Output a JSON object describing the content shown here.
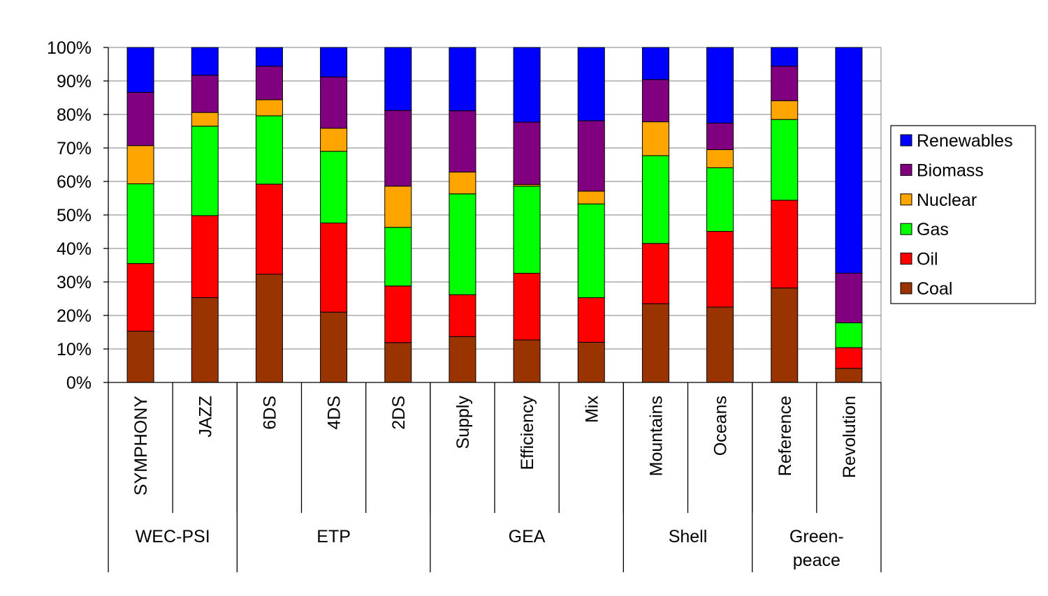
{
  "chart_data": {
    "type": "bar",
    "stacked": true,
    "percent": true,
    "title": "",
    "xlabel": "",
    "ylabel": "",
    "ylim": [
      0,
      100
    ],
    "yticks": [
      "0%",
      "10%",
      "20%",
      "30%",
      "40%",
      "50%",
      "60%",
      "70%",
      "80%",
      "90%",
      "100%"
    ],
    "grid": true,
    "legend_position": "right",
    "categories": [
      "SYMPHONY",
      "JAZZ",
      "6DS",
      "4DS",
      "2DS",
      "Supply",
      "Efficiency",
      "Mix",
      "Mountains",
      "Oceans",
      "Reference",
      "Revolution"
    ],
    "groups": [
      {
        "name": "WEC-PSI",
        "lines": [
          "WEC-PSI"
        ],
        "count": 2
      },
      {
        "name": "ETP",
        "lines": [
          "ETP"
        ],
        "count": 3
      },
      {
        "name": "GEA",
        "lines": [
          "GEA"
        ],
        "count": 3
      },
      {
        "name": "Shell",
        "lines": [
          "Shell"
        ],
        "count": 2
      },
      {
        "name": "Green-peace",
        "lines": [
          "Green-",
          "peace"
        ],
        "count": 2
      }
    ],
    "series": [
      {
        "name": "Coal",
        "color": "#993300",
        "values": [
          15.3,
          25.3,
          32.3,
          21.0,
          11.9,
          13.7,
          12.7,
          12.0,
          23.5,
          22.5,
          28.2,
          4.2
        ]
      },
      {
        "name": "Oil",
        "color": "#ff0000",
        "values": [
          20.2,
          24.5,
          26.9,
          26.6,
          16.9,
          12.5,
          19.9,
          13.3,
          18.0,
          22.6,
          26.2,
          6.2
        ]
      },
      {
        "name": "Gas",
        "color": "#00ff00",
        "values": [
          23.8,
          26.7,
          20.4,
          21.4,
          17.5,
          30.1,
          26.0,
          28.0,
          26.2,
          19.0,
          24.1,
          7.4
        ]
      },
      {
        "name": "Nuclear",
        "color": "#ffa500",
        "values": [
          11.4,
          4.1,
          4.8,
          6.9,
          12.3,
          6.5,
          0.5,
          3.8,
          10.1,
          5.4,
          5.6,
          0.0
        ]
      },
      {
        "name": "Biomass",
        "color": "#800080",
        "values": [
          15.9,
          11.1,
          10.0,
          15.3,
          22.6,
          18.3,
          18.6,
          21.0,
          12.6,
          7.9,
          10.3,
          14.8
        ]
      },
      {
        "name": "Renewables",
        "color": "#0000ff",
        "values": [
          13.4,
          8.3,
          5.6,
          8.8,
          18.8,
          18.9,
          22.3,
          21.9,
          9.6,
          22.6,
          5.6,
          67.4
        ]
      }
    ]
  }
}
